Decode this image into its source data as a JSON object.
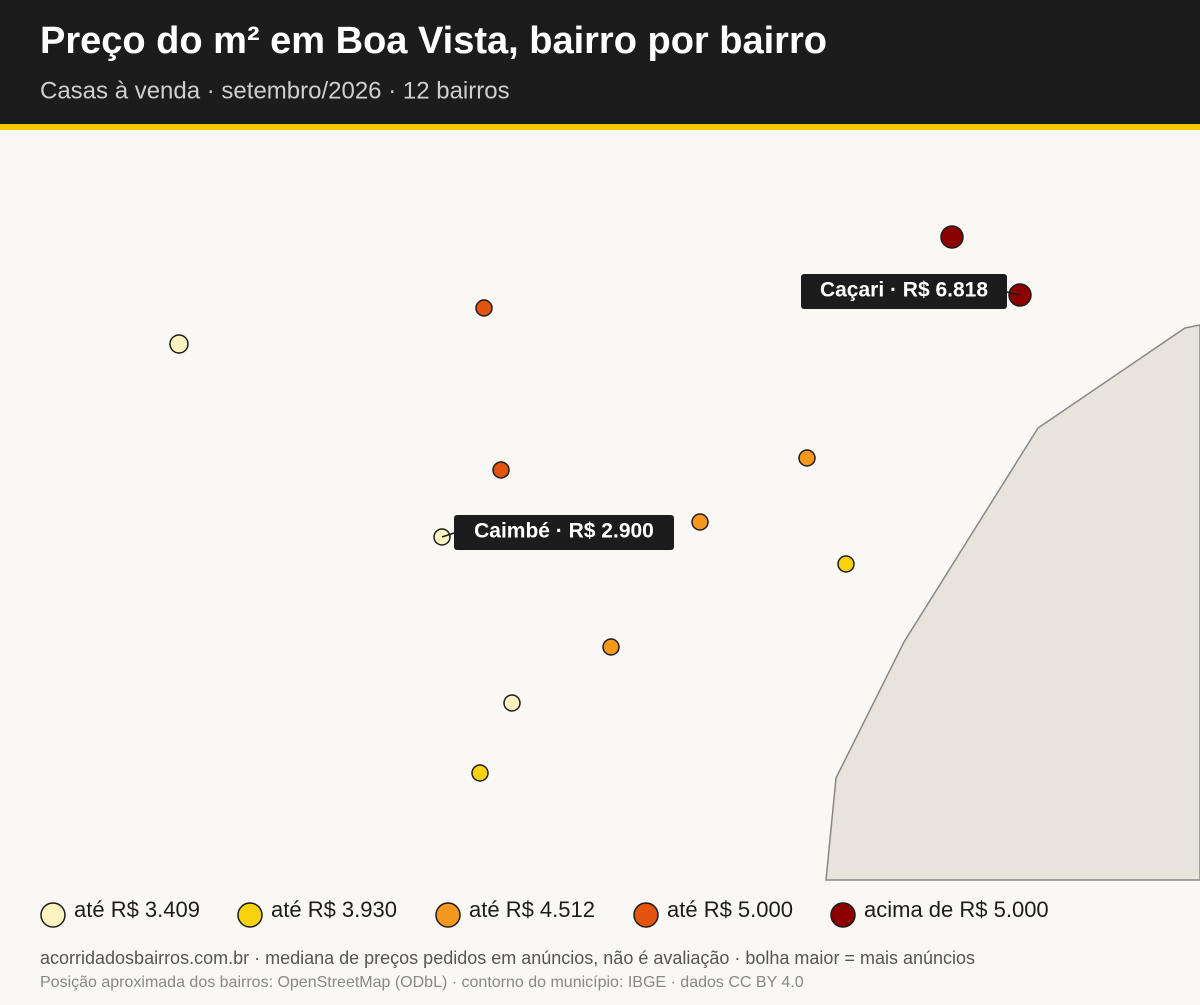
{
  "header": {
    "title": "Preço do m² em Boa Vista, bairro por bairro",
    "subtitle": "Casas à venda · setembro/2026 · 12 bairros"
  },
  "legend": [
    {
      "label": "até R$ 3.409",
      "color": "#fdf3c0"
    },
    {
      "label": "até R$ 3.930",
      "color": "#f8d20d"
    },
    {
      "label": "até R$ 4.512",
      "color": "#f7981e"
    },
    {
      "label": "até R$ 5.000",
      "color": "#e3550f"
    },
    {
      "label": "acima de R$ 5.000",
      "color": "#8b0000"
    }
  ],
  "callouts": [
    {
      "label": "Caçari · R$ 6.818"
    },
    {
      "label": "Caimbé · R$ 2.900"
    }
  ],
  "footer": {
    "source": "acorridadosbairros.com.br · mediana de preços pedidos em anúncios, não é avaliação · bolha maior = mais anúncios",
    "credits": "Posição aproximada dos bairros: OpenStreetMap (ODbL) · contorno do município: IBGE · dados CC BY 4.0"
  }
}
